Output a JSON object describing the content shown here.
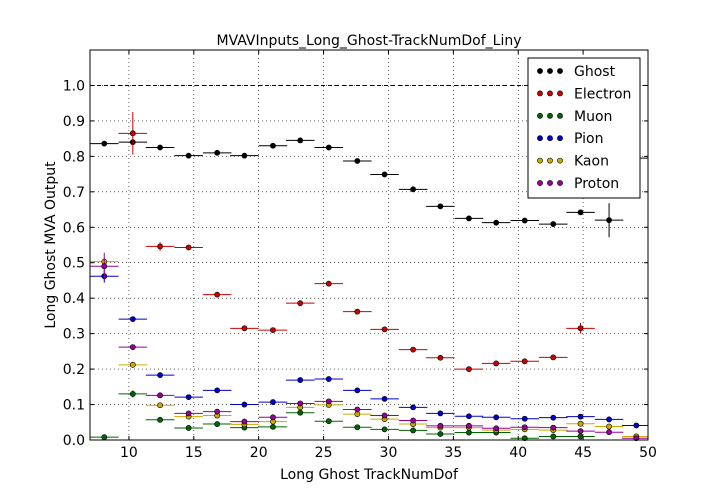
{
  "chart_data": {
    "type": "scatter",
    "title": "MVAVInputs_Long_Ghost-TrackNumDof_Liny",
    "xlabel": "Long Ghost TrackNumDof",
    "ylabel": "Long Ghost MVA Output",
    "xlim": [
      7,
      50
    ],
    "ylim": [
      0,
      1.1
    ],
    "xticks": [
      10,
      15,
      20,
      25,
      30,
      35,
      40,
      45,
      50
    ],
    "yticks": [
      0.0,
      0.1,
      0.2,
      0.3,
      0.4,
      0.5,
      0.6,
      0.7,
      0.8,
      0.9,
      1.0
    ],
    "grid": true,
    "legend_position": "top-right",
    "reference_line": 1.0,
    "bin_half_width": 1.1,
    "series": [
      {
        "name": "Ghost",
        "color": "#000000",
        "points": [
          [
            8.1,
            0.836
          ],
          [
            10.3,
            0.84
          ],
          [
            12.4,
            0.825
          ],
          [
            14.6,
            0.802
          ],
          [
            16.8,
            0.81
          ],
          [
            18.9,
            0.802
          ],
          [
            21.1,
            0.83
          ],
          [
            23.2,
            0.845
          ],
          [
            25.4,
            0.825
          ],
          [
            27.6,
            0.787
          ],
          [
            29.7,
            0.749
          ],
          [
            31.9,
            0.707
          ],
          [
            34.0,
            0.659
          ],
          [
            36.2,
            0.625
          ],
          [
            38.3,
            0.613
          ],
          [
            40.5,
            0.619
          ],
          [
            42.7,
            0.609
          ],
          [
            44.8,
            0.642
          ],
          [
            47.0,
            0.62
          ],
          [
            49.1,
            0.795
          ]
        ],
        "errors": [
          0,
          0.008,
          0,
          0,
          0,
          0,
          0,
          0,
          0,
          0,
          0,
          0,
          0,
          0,
          0,
          0,
          0,
          0,
          0.048,
          0
        ]
      },
      {
        "name": "Electron",
        "color": "#cc0000",
        "points": [
          [
            10.3,
            0.865
          ],
          [
            12.4,
            0.546
          ],
          [
            14.6,
            0.543
          ],
          [
            16.8,
            0.41
          ],
          [
            18.9,
            0.315
          ],
          [
            21.1,
            0.31
          ],
          [
            23.2,
            0.386
          ],
          [
            25.4,
            0.441
          ],
          [
            27.6,
            0.362
          ],
          [
            29.7,
            0.312
          ],
          [
            31.9,
            0.255
          ],
          [
            34.0,
            0.232
          ],
          [
            36.2,
            0.2
          ],
          [
            38.3,
            0.216
          ],
          [
            40.5,
            0.222
          ],
          [
            42.7,
            0.233
          ],
          [
            44.8,
            0.315
          ]
        ],
        "errors": [
          0.06,
          0.012,
          0,
          0,
          0,
          0,
          0,
          0,
          0,
          0,
          0,
          0,
          0,
          0,
          0,
          0,
          0.015
        ]
      },
      {
        "name": "Muon",
        "color": "#006600",
        "points": [
          [
            8.1,
            0.008
          ],
          [
            10.3,
            0.13
          ],
          [
            12.4,
            0.057
          ],
          [
            14.6,
            0.034
          ],
          [
            16.8,
            0.045
          ],
          [
            18.9,
            0.035
          ],
          [
            21.1,
            0.037
          ],
          [
            23.2,
            0.077
          ],
          [
            25.4,
            0.053
          ],
          [
            27.6,
            0.036
          ],
          [
            29.7,
            0.03
          ],
          [
            31.9,
            0.027
          ],
          [
            34.0,
            0.017
          ],
          [
            36.2,
            0.021
          ],
          [
            38.3,
            0.021
          ],
          [
            40.5,
            0.005
          ],
          [
            42.7,
            0.01
          ],
          [
            44.8,
            0.01
          ]
        ],
        "errors": [
          0,
          0.01,
          0,
          0,
          0,
          0,
          0,
          0,
          0,
          0,
          0,
          0,
          0,
          0,
          0,
          0,
          0,
          0
        ]
      },
      {
        "name": "Pion",
        "color": "#0000cc",
        "points": [
          [
            8.1,
            0.462
          ],
          [
            10.3,
            0.341
          ],
          [
            12.4,
            0.183
          ],
          [
            14.6,
            0.121
          ],
          [
            16.8,
            0.14
          ],
          [
            18.9,
            0.1
          ],
          [
            21.1,
            0.107
          ],
          [
            23.2,
            0.169
          ],
          [
            25.4,
            0.172
          ],
          [
            27.6,
            0.14
          ],
          [
            29.7,
            0.116
          ],
          [
            31.9,
            0.092
          ],
          [
            34.0,
            0.075
          ],
          [
            36.2,
            0.067
          ],
          [
            38.3,
            0.064
          ],
          [
            40.5,
            0.06
          ],
          [
            42.7,
            0.063
          ],
          [
            44.8,
            0.066
          ],
          [
            47.0,
            0.058
          ],
          [
            49.1,
            0.041
          ]
        ],
        "errors": [
          0.018,
          0,
          0,
          0,
          0,
          0,
          0,
          0,
          0,
          0,
          0,
          0,
          0,
          0,
          0,
          0,
          0,
          0,
          0,
          0
        ]
      },
      {
        "name": "Kaon",
        "color": "#ccaa00",
        "points": [
          [
            8.1,
            0.503
          ],
          [
            10.3,
            0.212
          ],
          [
            12.4,
            0.098
          ],
          [
            14.6,
            0.066
          ],
          [
            16.8,
            0.069
          ],
          [
            18.9,
            0.044
          ],
          [
            21.1,
            0.052
          ],
          [
            23.2,
            0.092
          ],
          [
            25.4,
            0.099
          ],
          [
            27.6,
            0.073
          ],
          [
            29.7,
            0.059
          ],
          [
            31.9,
            0.045
          ],
          [
            34.0,
            0.035
          ],
          [
            36.2,
            0.035
          ],
          [
            38.3,
            0.028
          ],
          [
            40.5,
            0.03
          ],
          [
            42.7,
            0.028
          ],
          [
            44.8,
            0.046
          ],
          [
            47.0,
            0.038
          ],
          [
            49.1,
            0.01
          ]
        ],
        "errors": [
          0.012,
          0,
          0,
          0,
          0,
          0,
          0,
          0,
          0,
          0,
          0,
          0,
          0,
          0,
          0,
          0,
          0,
          0,
          0,
          0
        ]
      },
      {
        "name": "Proton",
        "color": "#990099",
        "points": [
          [
            8.1,
            0.49
          ],
          [
            10.3,
            0.262
          ],
          [
            12.4,
            0.126
          ],
          [
            14.6,
            0.075
          ],
          [
            16.8,
            0.08
          ],
          [
            18.9,
            0.052
          ],
          [
            21.1,
            0.064
          ],
          [
            23.2,
            0.103
          ],
          [
            25.4,
            0.109
          ],
          [
            27.6,
            0.086
          ],
          [
            29.7,
            0.069
          ],
          [
            31.9,
            0.055
          ],
          [
            34.0,
            0.04
          ],
          [
            36.2,
            0.04
          ],
          [
            38.3,
            0.033
          ],
          [
            40.5,
            0.036
          ],
          [
            42.7,
            0.035
          ],
          [
            44.8,
            0.025
          ],
          [
            47.0,
            0.022
          ],
          [
            49.1,
            0.005
          ]
        ],
        "errors": [
          0.038,
          0,
          0,
          0,
          0,
          0,
          0,
          0,
          0,
          0,
          0,
          0,
          0,
          0,
          0,
          0,
          0,
          0,
          0,
          0
        ]
      }
    ]
  }
}
